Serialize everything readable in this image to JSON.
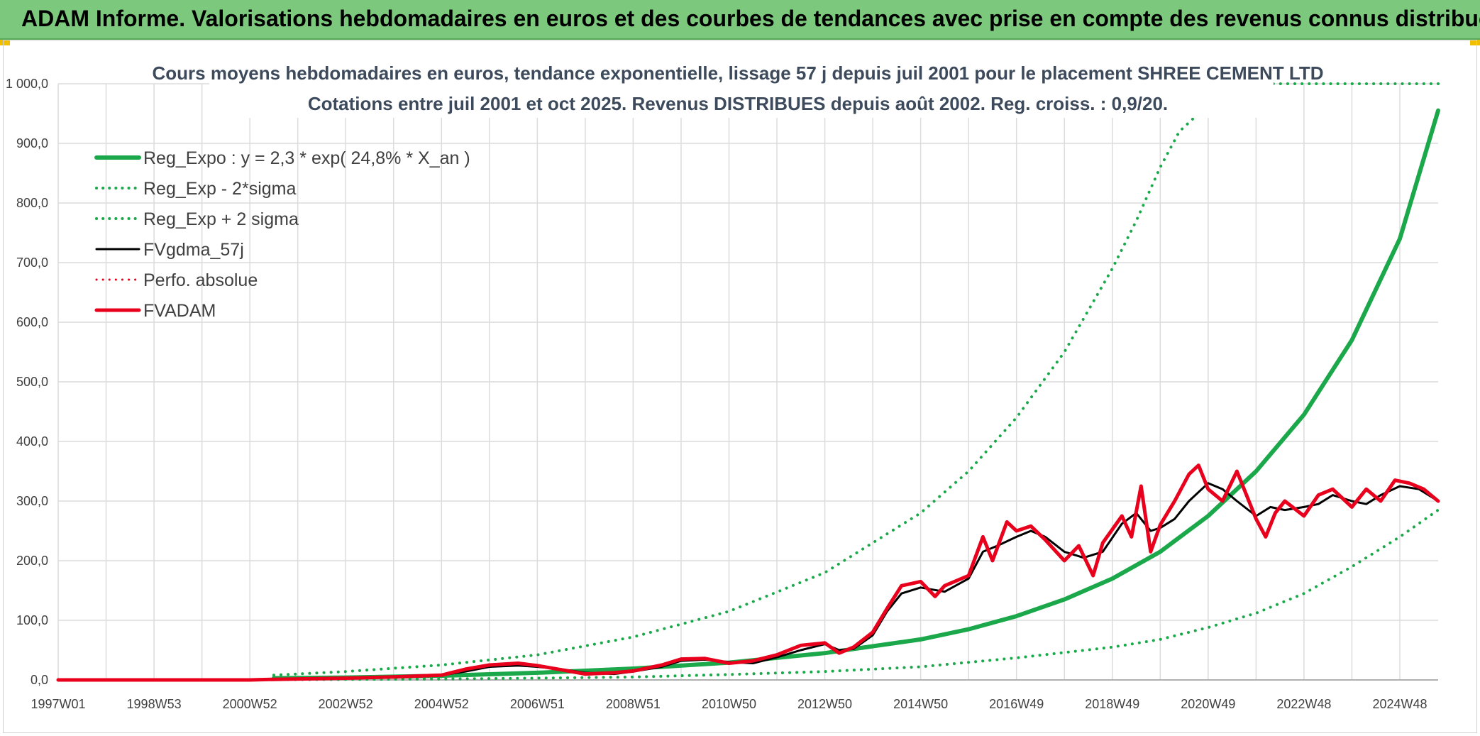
{
  "banner": {
    "title": "ADAM Informe. Valorisations hebdomadaires en euros et des courbes de tendances avec prise en compte des revenus connus distribués"
  },
  "colors": {
    "banner_bg": "#7cc87c",
    "reg_expo": "#1aa84a",
    "black": "#000000",
    "red": "#e8001c",
    "grid": "#dcdcdc"
  },
  "chart_data": {
    "type": "line",
    "title": "Cours moyens hebdomadaires en euros, tendance exponentielle, lissage 57 j depuis juil 2001 pour le placement SHREE CEMENT LTD",
    "subtitle": "Cotations entre juil 2001 et oct 2025. Revenus DISTRIBUES depuis août 2002. Reg. croiss. : 0,9/20.",
    "xlabel": "",
    "ylabel": "",
    "xlim": [
      1997.0,
      2025.8
    ],
    "ylim": [
      0,
      1000
    ],
    "y_ticks": [
      "0,0",
      "100,0",
      "200,0",
      "300,0",
      "400,0",
      "500,0",
      "600,0",
      "700,0",
      "800,0",
      "900,0",
      "1 000,0"
    ],
    "y_tick_values": [
      0,
      100,
      200,
      300,
      400,
      500,
      600,
      700,
      800,
      900,
      1000
    ],
    "x_ticks": [
      "1997W01",
      "1998W53",
      "2000W52",
      "2002W52",
      "2004W52",
      "2006W51",
      "2008W51",
      "2010W50",
      "2012W50",
      "2014W50",
      "2016W49",
      "2018W49",
      "2020W49",
      "2022W48",
      "2024W48"
    ],
    "x_tick_values": [
      1997.0,
      1999.0,
      2001.0,
      2003.0,
      2005.0,
      2007.0,
      2009.0,
      2011.0,
      2013.0,
      2015.0,
      2017.0,
      2019.0,
      2021.0,
      2023.0,
      2025.0
    ],
    "grid": true,
    "legend_position": "top-left",
    "legend": [
      {
        "label": "Reg_Expo : y = 2,3 * exp( 24,8% *  X_an )",
        "color": "#1aa84a",
        "style": "solid",
        "width": 6
      },
      {
        "label": "Reg_Exp - 2*sigma",
        "color": "#1aa84a",
        "style": "dotted",
        "width": 4
      },
      {
        "label": "Reg_Exp + 2 sigma",
        "color": "#1aa84a",
        "style": "dotted",
        "width": 4
      },
      {
        "label": "FVgdma_57j",
        "color": "#000000",
        "style": "solid",
        "width": 3
      },
      {
        "label": "Perfo. absolue",
        "color": "#e8001c",
        "style": "dotted",
        "width": 3
      },
      {
        "label": "FVADAM",
        "color": "#e8001c",
        "style": "solid",
        "width": 5
      }
    ],
    "series": [
      {
        "name": "Reg_Expo : y = 2,3 * exp( 24,8% *  X_an )",
        "x": [
          2001.5,
          2003,
          2005,
          2007,
          2009,
          2011,
          2013,
          2015,
          2016,
          2017,
          2018,
          2019,
          2020,
          2021,
          2022,
          2023,
          2024,
          2025,
          2025.8
        ],
        "values": [
          3,
          4,
          7,
          12,
          19,
          29,
          45,
          68,
          85,
          107,
          135,
          170,
          215,
          275,
          350,
          445,
          570,
          740,
          955
        ]
      },
      {
        "name": "Reg_Exp - 2*sigma",
        "x": [
          2001.5,
          2003,
          2005,
          2007,
          2009,
          2011,
          2013,
          2015,
          2017,
          2019,
          2020,
          2021,
          2022,
          2023,
          2024,
          2025,
          2025.8
        ],
        "values": [
          0.5,
          0.8,
          1.5,
          3,
          5,
          9,
          14,
          22,
          37,
          55,
          68,
          88,
          112,
          145,
          190,
          240,
          285
        ]
      },
      {
        "name": "Reg_Exp + 2 sigma",
        "x": [
          2001.5,
          2003,
          2005,
          2007,
          2009,
          2011,
          2013,
          2015,
          2016,
          2017,
          2018,
          2019,
          2019.5,
          2020,
          2020.4,
          2020.8,
          2021.15,
          2021.3,
          2021.8,
          2025.8
        ],
        "values": [
          8,
          14,
          25,
          42,
          72,
          115,
          180,
          280,
          350,
          440,
          550,
          690,
          770,
          860,
          920,
          950,
          1000,
          1000,
          1000,
          1000
        ]
      },
      {
        "name": "FVgdma_57j",
        "x": [
          2001.5,
          2003,
          2004,
          2005,
          2005.5,
          2006,
          2006.6,
          2007,
          2007.5,
          2008,
          2008.6,
          2009,
          2009.6,
          2010,
          2010.5,
          2011,
          2011.5,
          2012,
          2012.5,
          2013,
          2013.3,
          2013.6,
          2014,
          2014.3,
          2014.6,
          2015,
          2015.5,
          2016,
          2016.3,
          2016.6,
          2017,
          2017.3,
          2017.6,
          2018,
          2018.4,
          2018.8,
          2019.2,
          2019.5,
          2019.8,
          2020,
          2020.3,
          2020.6,
          2021,
          2021.3,
          2021.6,
          2022,
          2022.3,
          2022.6,
          2023,
          2023.3,
          2023.6,
          2024,
          2024.3,
          2024.6,
          2025,
          2025.4,
          2025.8
        ],
        "values": [
          1,
          3,
          5,
          8,
          14,
          22,
          24,
          22,
          18,
          12,
          10,
          14,
          22,
          32,
          34,
          30,
          28,
          38,
          50,
          60,
          50,
          52,
          75,
          115,
          145,
          155,
          148,
          170,
          215,
          225,
          240,
          250,
          240,
          215,
          205,
          215,
          262,
          280,
          250,
          255,
          270,
          300,
          330,
          320,
          300,
          275,
          290,
          285,
          290,
          295,
          310,
          300,
          295,
          310,
          325,
          320,
          300
        ]
      },
      {
        "name": "FVADAM",
        "x": [
          1997.0,
          1999.0,
          2001.0,
          2001.5,
          2003,
          2004,
          2005,
          2005.5,
          2006,
          2006.6,
          2007,
          2007.5,
          2008,
          2008.6,
          2009,
          2009.6,
          2010,
          2010.5,
          2011,
          2011.5,
          2012,
          2012.5,
          2013,
          2013.3,
          2013.6,
          2014,
          2014.3,
          2014.6,
          2015,
          2015.3,
          2015.5,
          2016,
          2016.3,
          2016.5,
          2016.8,
          2017,
          2017.3,
          2017.6,
          2018,
          2018.3,
          2018.6,
          2018.8,
          2019.2,
          2019.4,
          2019.6,
          2019.8,
          2020,
          2020.3,
          2020.6,
          2020.8,
          2021,
          2021.3,
          2021.6,
          2022,
          2022.2,
          2022.4,
          2022.6,
          2023,
          2023.3,
          2023.6,
          2024,
          2024.3,
          2024.6,
          2024.9,
          2025.2,
          2025.5,
          2025.8
        ],
        "values": [
          0,
          0,
          0,
          1,
          3,
          5,
          8,
          18,
          25,
          28,
          24,
          17,
          10,
          12,
          15,
          25,
          35,
          36,
          28,
          32,
          42,
          58,
          62,
          45,
          55,
          80,
          120,
          158,
          165,
          140,
          158,
          175,
          240,
          200,
          265,
          250,
          258,
          235,
          200,
          225,
          175,
          230,
          275,
          240,
          325,
          215,
          260,
          300,
          345,
          360,
          320,
          300,
          350,
          270,
          240,
          280,
          300,
          275,
          310,
          320,
          290,
          320,
          300,
          335,
          330,
          320,
          300
        ]
      }
    ]
  }
}
